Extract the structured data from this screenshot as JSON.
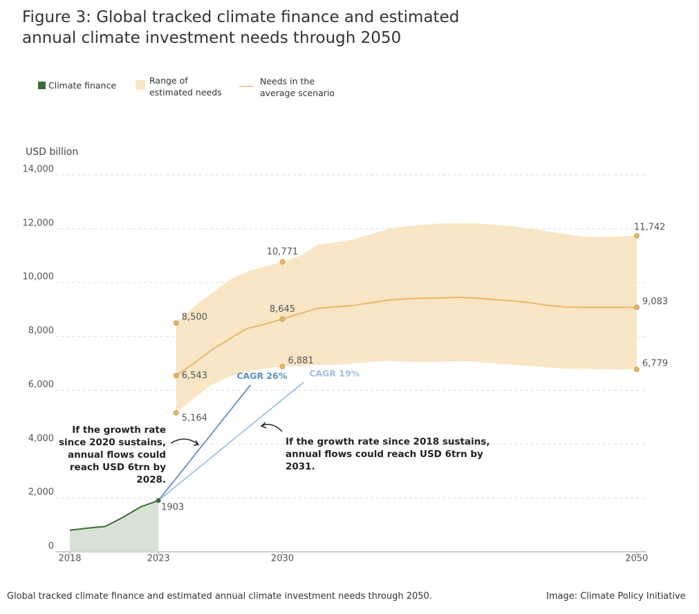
{
  "chart_data": {
    "type": "line",
    "title": "Figure 3: Global tracked climate finance and estimated annual climate investment needs through 2050",
    "y_label": "USD billion",
    "xlim": [
      2017.18,
      2050.55
    ],
    "xticks": [
      2018,
      2023,
      2030,
      2050
    ],
    "ylim": [
      0,
      14000
    ],
    "yticks": [
      0,
      {
        "value": 2000,
        "label": "2,000"
      },
      {
        "value": 4000,
        "label": "4,000"
      },
      {
        "value": 6000,
        "label": "6,000"
      },
      {
        "value": 8000,
        "label": "8,000"
      },
      {
        "value": 10000,
        "label": "10,000"
      },
      {
        "value": 12000,
        "label": "12,000"
      },
      {
        "value": 14000,
        "label": "14,000"
      }
    ],
    "grid": true,
    "series": [
      {
        "name": "Climate finance",
        "color": "#3d6b35",
        "area_color": "#d7e1d6",
        "x": [
          2018,
          2019,
          2020,
          2021,
          2022,
          2023
        ],
        "values": [
          800,
          880,
          940,
          1280,
          1670,
          1903
        ],
        "value_labels": [
          null,
          null,
          null,
          null,
          null,
          "1903"
        ]
      },
      {
        "name": "Needs in the average scenario",
        "color": "#e8b86a",
        "x": [
          2024,
          2025,
          2026,
          2027,
          2028,
          2029,
          2030,
          2031,
          2032,
          2033,
          2034,
          2035,
          2036,
          2037,
          2038,
          2039,
          2040,
          2041,
          2042,
          2043,
          2044,
          2045,
          2046,
          2047,
          2048,
          2049,
          2050
        ],
        "values": [
          6543,
          7000,
          7500,
          7900,
          8300,
          8450,
          8645,
          8850,
          9050,
          9100,
          9150,
          9250,
          9350,
          9400,
          9420,
          9430,
          9450,
          9420,
          9370,
          9320,
          9250,
          9150,
          9090,
          9080,
          9080,
          9080,
          9083
        ],
        "value_labels": [
          "6,543",
          null,
          null,
          null,
          null,
          null,
          "8,645",
          null,
          null,
          null,
          null,
          null,
          null,
          null,
          null,
          null,
          null,
          null,
          null,
          null,
          null,
          null,
          null,
          null,
          null,
          null,
          "9,083"
        ]
      }
    ],
    "band": {
      "name": "Range of estimated needs",
      "color": "#f8e6c6",
      "point_color": "#e2b66c",
      "x": [
        2024,
        2025,
        2026,
        2027,
        2028,
        2029,
        2030,
        2031,
        2032,
        2033,
        2034,
        2035,
        2036,
        2037,
        2038,
        2039,
        2040,
        2041,
        2042,
        2043,
        2044,
        2045,
        2046,
        2047,
        2048,
        2049,
        2050
      ],
      "low": [
        5164,
        5700,
        6200,
        6500,
        6700,
        6800,
        6881,
        6900,
        6950,
        6950,
        7000,
        7050,
        7100,
        7050,
        7050,
        7050,
        7080,
        7050,
        7000,
        6950,
        6900,
        6850,
        6800,
        6800,
        6780,
        6770,
        6779
      ],
      "high": [
        8500,
        9100,
        9600,
        10100,
        10400,
        10600,
        10771,
        11000,
        11400,
        11500,
        11600,
        11800,
        12000,
        12100,
        12150,
        12200,
        12200,
        12200,
        12150,
        12100,
        12000,
        11900,
        11800,
        11700,
        11700,
        11720,
        11742
      ],
      "low_labels": [
        "5,164",
        null,
        null,
        null,
        null,
        null,
        "6,881",
        null,
        null,
        null,
        null,
        null,
        null,
        null,
        null,
        null,
        null,
        null,
        null,
        null,
        null,
        null,
        null,
        null,
        null,
        null,
        "6,779"
      ],
      "high_labels": [
        "8,500",
        null,
        null,
        null,
        null,
        null,
        "10,771",
        null,
        null,
        null,
        null,
        null,
        null,
        null,
        null,
        null,
        null,
        null,
        null,
        null,
        null,
        null,
        null,
        null,
        null,
        null,
        "11,742"
      ]
    },
    "projections": [
      {
        "name": "CAGR 26%",
        "color": "#5b8fc2",
        "x": [
          2023,
          2028.2
        ],
        "values": [
          1903,
          6200
        ]
      },
      {
        "name": "CAGR 19%",
        "color": "#9dc0e0",
        "x": [
          2023,
          2031.2
        ],
        "values": [
          1903,
          6300
        ]
      }
    ],
    "annotations": [
      "If the growth rate since 2020 sustains, annual flows could reach USD 6trn by 2028.",
      "If the growth rate since 2018 sustains, annual flows could reach USD 6trn by 2031."
    ]
  },
  "footer": {
    "caption": "Global tracked climate finance and estimated annual climate investment needs through 2050.",
    "credit": "Image: Climate Policy Initiative"
  }
}
